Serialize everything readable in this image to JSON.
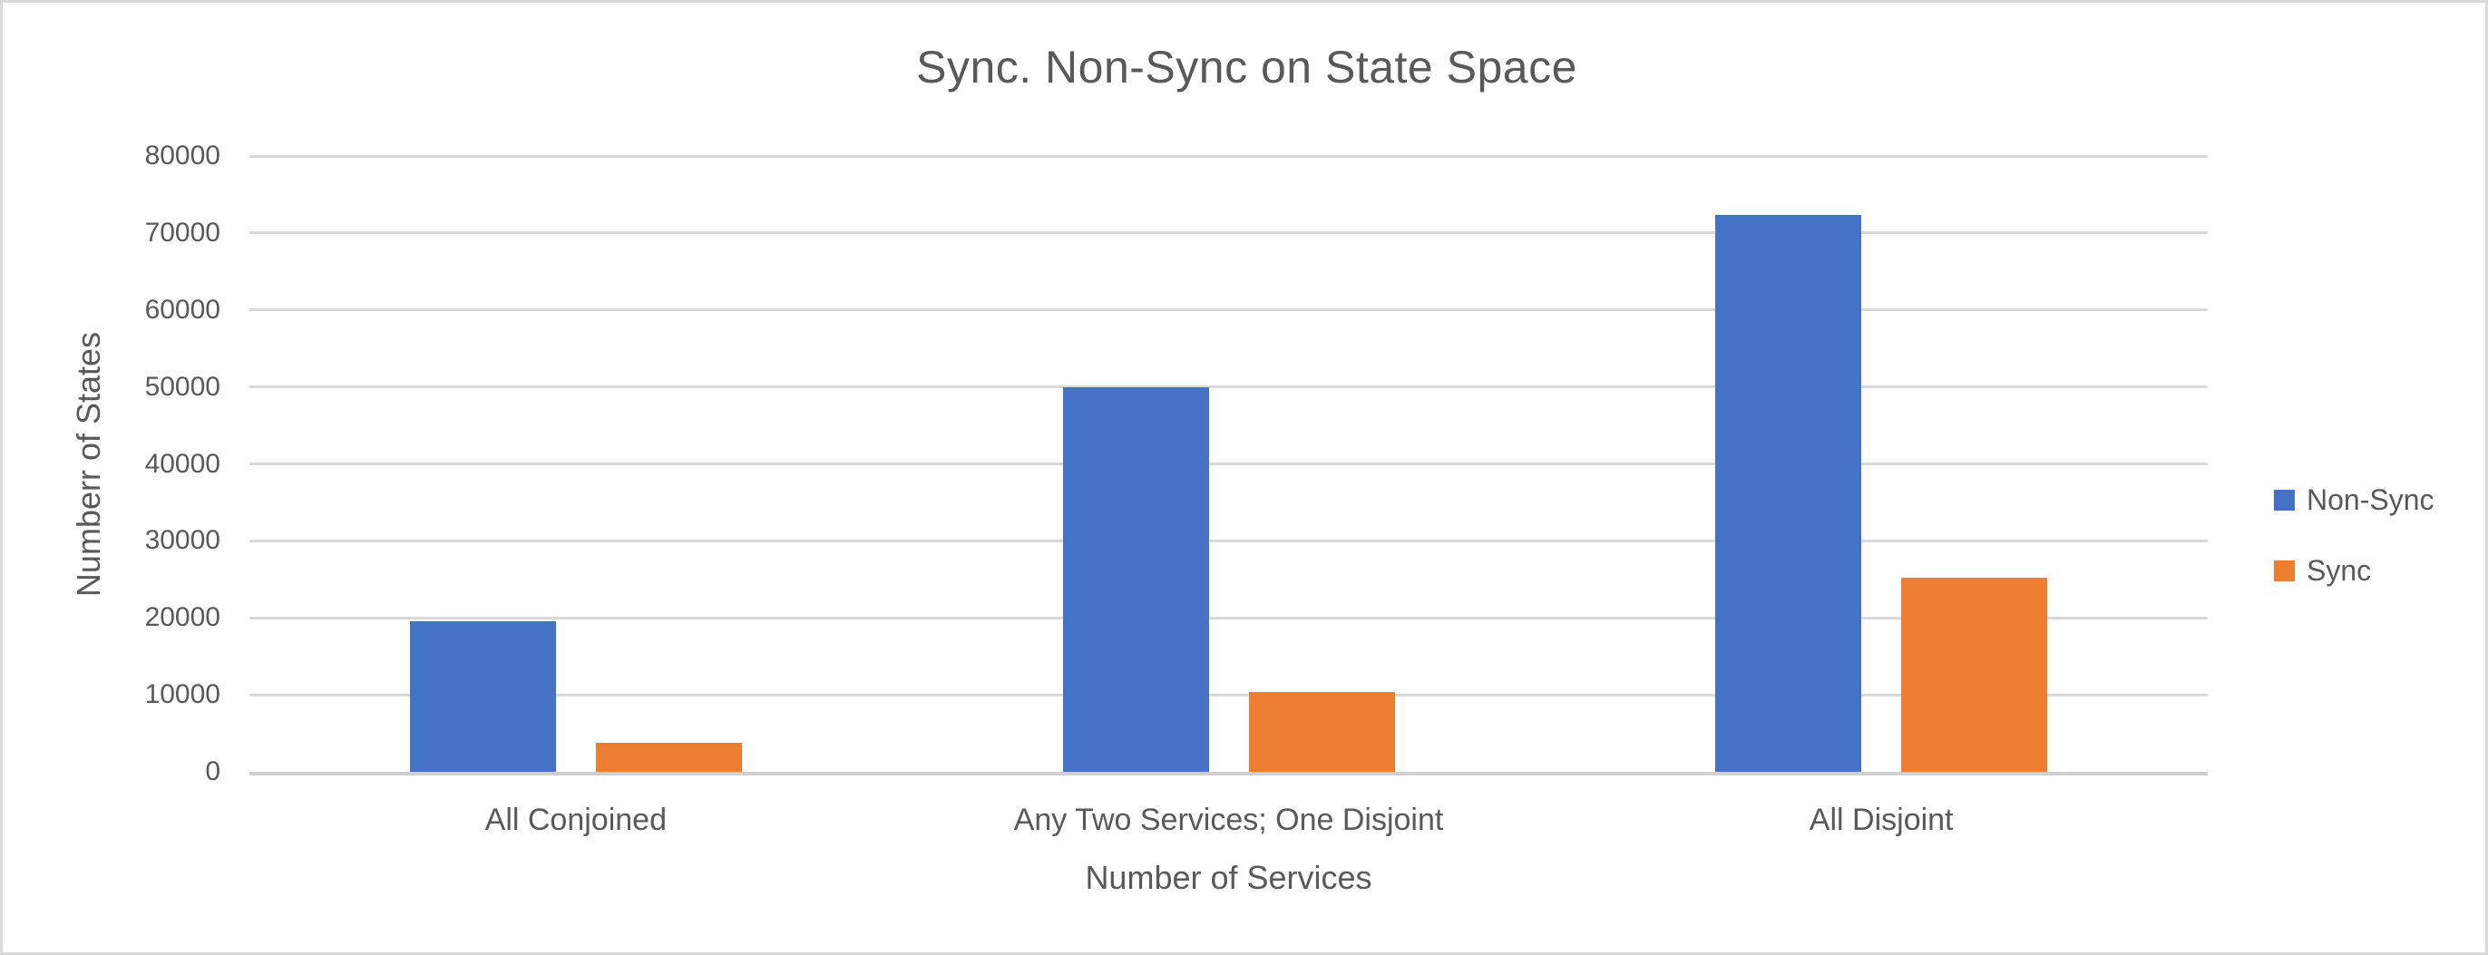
{
  "window": {
    "background": "#FFFFFF",
    "frame_border_color": "#DADADA"
  },
  "chart_data": {
    "type": "bar",
    "title": "Sync. Non-Sync on State Space",
    "xlabel": "Number of Services",
    "ylabel": "Numberr of States",
    "categories": [
      "All Conjoined",
      "Any Two Services; One Disjoint",
      "All Disjoint"
    ],
    "series": [
      {
        "name": "Non-Sync",
        "color": "#4472C4",
        "values": [
          19600,
          50000,
          72400
        ]
      },
      {
        "name": "Sync",
        "color": "#ED7D31",
        "values": [
          3800,
          10400,
          25200
        ]
      }
    ],
    "ylim": [
      0,
      80000
    ],
    "ytick_step": 10000,
    "ytick_labels": [
      "0",
      "10000",
      "20000",
      "30000",
      "40000",
      "50000",
      "60000",
      "70000",
      "80000"
    ],
    "grid": "horizontal",
    "gridline_color": "#D9D9D9",
    "text_color": "#595959",
    "legend_position": "right"
  }
}
